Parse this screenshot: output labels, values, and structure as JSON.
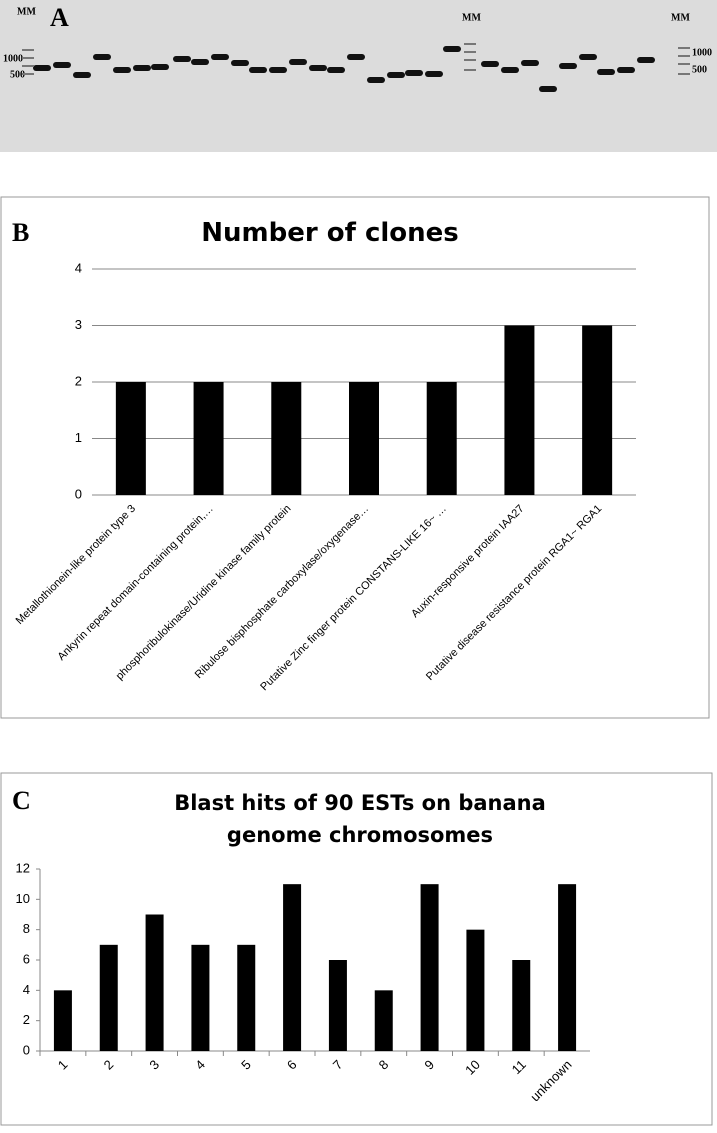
{
  "gel": {
    "panel_label": "A",
    "marker_labels": [
      "MM",
      "MM",
      "MM"
    ],
    "size_labels": [
      "1000",
      "500",
      "1000",
      "500"
    ]
  },
  "chart_data": [
    {
      "type": "bar",
      "panel_label": "B",
      "title": "Number of clones",
      "categories": [
        "Metallothionein-like protein type 3",
        "Ankyrin repeat domain-containing protein,…",
        "phosphoribulokinase/Uridine kinase family protein",
        "Ribulose bisphosphate carboxylase/oxygenase…",
        "Putative Zinc finger protein CONSTANS-LIKE 16~ …",
        "Auxin-responsive protein IAA27",
        "Putative disease resistance protein RGA1~ RGA1"
      ],
      "values": [
        2,
        2,
        2,
        2,
        2,
        3,
        3
      ],
      "color": "#000000",
      "ylim": [
        0,
        4
      ],
      "yticks": [
        0,
        1,
        2,
        3,
        4
      ],
      "grid": true
    },
    {
      "type": "bar",
      "panel_label": "C",
      "title": "Blast hits of 90 ESTs on banana genome chromosomes",
      "categories": [
        "1",
        "2",
        "3",
        "4",
        "5",
        "6",
        "7",
        "8",
        "9",
        "10",
        "11",
        "unknown"
      ],
      "values": [
        4,
        7,
        9,
        7,
        7,
        11,
        6,
        4,
        11,
        8,
        6,
        11
      ],
      "color": "#000000",
      "ylim": [
        0,
        12
      ],
      "yticks": [
        0,
        2,
        4,
        6,
        8,
        10,
        12
      ],
      "grid": false
    }
  ]
}
